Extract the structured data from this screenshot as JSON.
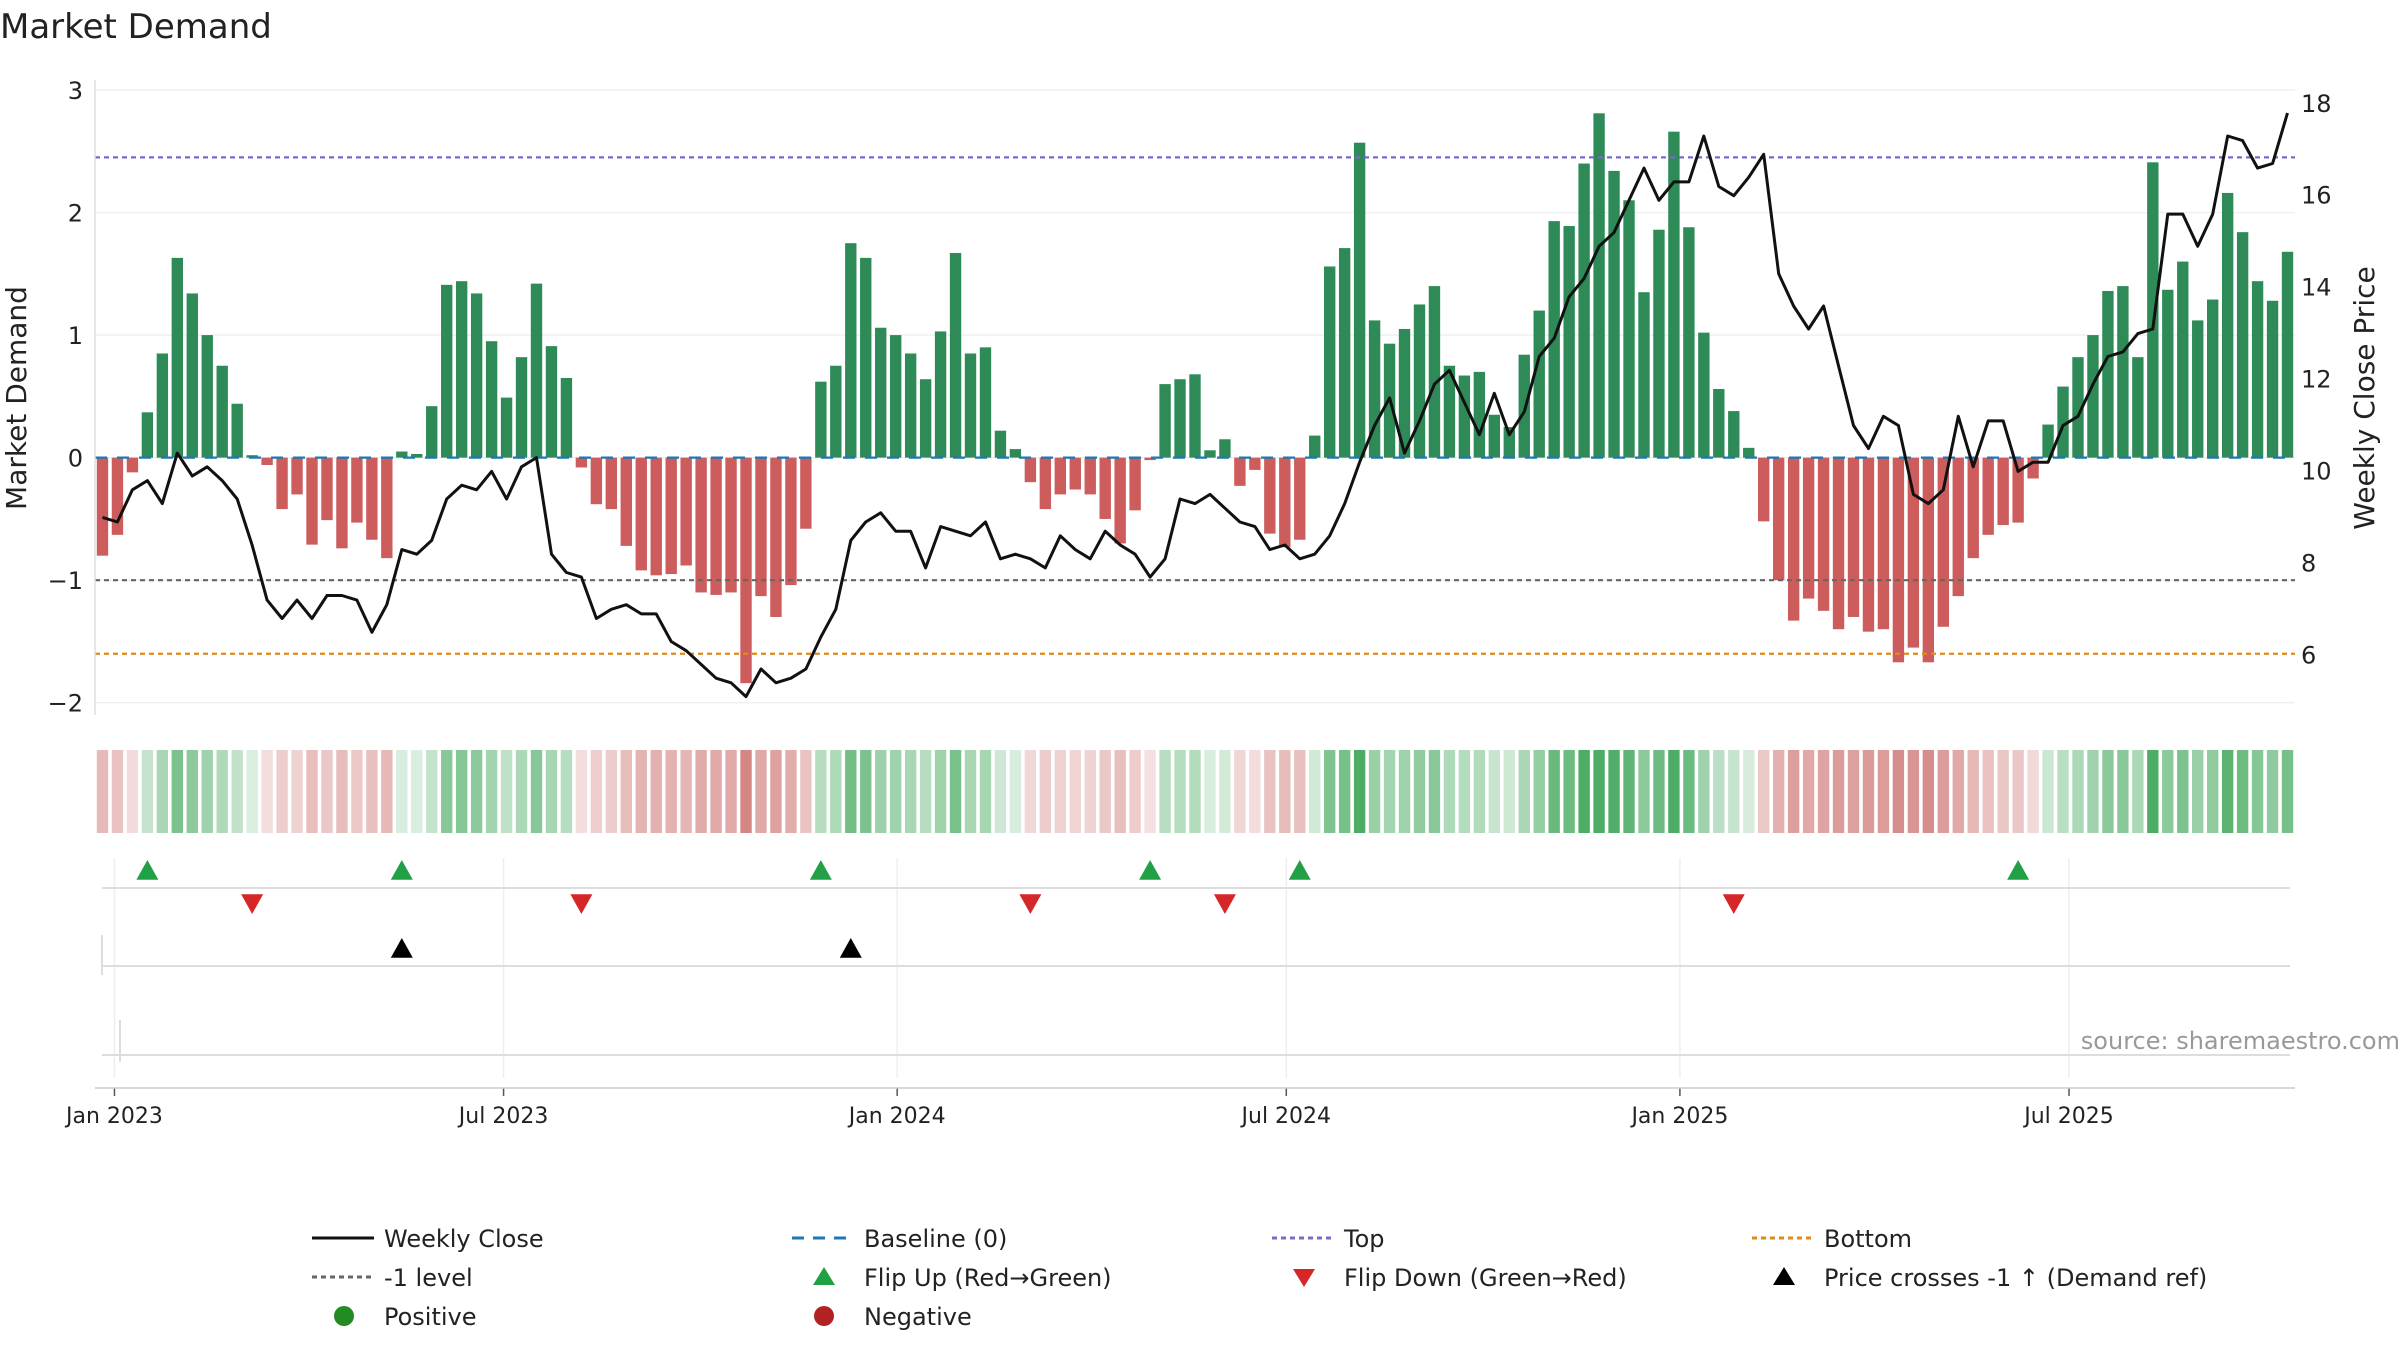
{
  "chart_data": {
    "type": "bar",
    "title": "Market Demand",
    "ylabel": "Market Demand",
    "y2label": "Weekly Close Price",
    "ylim": [
      -2.1,
      3.0
    ],
    "y2lim": [
      4.7,
      18.3
    ],
    "yticks": [
      "3",
      "2",
      "1",
      "0",
      "−1",
      "−2"
    ],
    "y2ticks": [
      "18",
      "16",
      "14",
      "12",
      "10",
      "8",
      "6"
    ],
    "xticks": [
      "Jan 2023",
      "Jul 2023",
      "Jan 2024",
      "Jul 2024",
      "Jan 2025",
      "Jul 2025"
    ],
    "xtick_weeks": [
      1.3,
      27.3,
      53.6,
      79.6,
      105.9,
      131.9
    ],
    "reference_lines": {
      "top": 2.45,
      "minus_one": -1.0,
      "bottom": -1.6,
      "baseline": 0
    },
    "demand": [
      -0.8,
      -0.63,
      -0.12,
      0.37,
      0.85,
      1.63,
      1.34,
      1.0,
      0.75,
      0.44,
      0.02,
      -0.06,
      -0.42,
      -0.3,
      -0.71,
      -0.51,
      -0.74,
      -0.53,
      -0.67,
      -0.82,
      0.05,
      0.03,
      0.42,
      1.41,
      1.44,
      1.34,
      0.95,
      0.49,
      0.82,
      1.42,
      0.91,
      0.65,
      -0.08,
      -0.38,
      -0.42,
      -0.72,
      -0.92,
      -0.96,
      -0.95,
      -0.88,
      -1.1,
      -1.12,
      -1.1,
      -1.84,
      -1.13,
      -1.3,
      -1.04,
      -0.58,
      0.62,
      0.75,
      1.75,
      1.63,
      1.06,
      1.0,
      0.85,
      0.64,
      1.03,
      1.67,
      0.85,
      0.9,
      0.22,
      0.07,
      -0.2,
      -0.42,
      -0.3,
      -0.26,
      -0.3,
      -0.5,
      -0.7,
      -0.43,
      -0.02,
      0.6,
      0.64,
      0.68,
      0.06,
      0.15,
      -0.23,
      -0.1,
      -0.62,
      -0.73,
      -0.67,
      0.18,
      1.56,
      1.71,
      2.57,
      1.12,
      0.93,
      1.05,
      1.25,
      1.4,
      0.75,
      0.67,
      0.7,
      0.35,
      0.25,
      0.84,
      1.2,
      1.93,
      1.89,
      2.4,
      2.81,
      2.34,
      2.1,
      1.35,
      1.86,
      2.66,
      1.88,
      1.02,
      0.56,
      0.38,
      0.08,
      -0.52,
      -1.0,
      -1.33,
      -1.15,
      -1.25,
      -1.4,
      -1.3,
      -1.42,
      -1.4,
      -1.67,
      -1.55,
      -1.67,
      -1.38,
      -1.13,
      -0.82,
      -0.63,
      -0.55,
      -0.53,
      -0.17,
      0.27,
      0.58,
      0.82,
      1.0,
      1.36,
      1.4,
      0.82,
      2.41,
      1.37,
      1.6,
      1.12,
      1.29,
      2.16,
      1.84,
      1.44,
      1.28,
      1.68
    ],
    "weekly_close": [
      9.0,
      8.9,
      9.6,
      9.8,
      9.3,
      10.4,
      9.9,
      10.1,
      9.8,
      9.4,
      8.4,
      7.2,
      6.8,
      7.2,
      6.8,
      7.3,
      7.3,
      7.2,
      6.5,
      7.1,
      8.3,
      8.2,
      8.5,
      9.4,
      9.7,
      9.6,
      10.0,
      9.4,
      10.1,
      10.3,
      8.2,
      7.8,
      7.7,
      6.8,
      7.0,
      7.1,
      6.9,
      6.9,
      6.3,
      6.1,
      5.8,
      5.5,
      5.4,
      5.1,
      5.7,
      5.4,
      5.5,
      5.7,
      6.4,
      7.0,
      8.5,
      8.9,
      9.1,
      8.7,
      8.7,
      7.9,
      8.8,
      8.7,
      8.6,
      8.9,
      8.1,
      8.2,
      8.1,
      7.9,
      8.6,
      8.3,
      8.1,
      8.7,
      8.4,
      8.2,
      7.7,
      8.1,
      9.4,
      9.3,
      9.5,
      9.2,
      8.9,
      8.8,
      8.3,
      8.4,
      8.1,
      8.2,
      8.6,
      9.3,
      10.2,
      11.0,
      11.6,
      10.4,
      11.1,
      11.9,
      12.2,
      11.5,
      10.8,
      11.7,
      10.8,
      11.3,
      12.5,
      12.9,
      13.8,
      14.2,
      14.9,
      15.2,
      15.9,
      16.6,
      15.9,
      16.3,
      16.3,
      17.3,
      16.2,
      16.0,
      16.4,
      16.9,
      14.3,
      13.6,
      13.1,
      13.6,
      12.3,
      11.0,
      10.5,
      11.2,
      11.0,
      9.5,
      9.3,
      9.6,
      11.2,
      10.1,
      11.1,
      11.1,
      10.0,
      10.2,
      10.2,
      11.0,
      11.2,
      11.9,
      12.5,
      12.6,
      13.0,
      13.1,
      15.6,
      15.6,
      14.9,
      15.6,
      17.3,
      17.2,
      16.6,
      16.7,
      17.8
    ],
    "marker_rows": {
      "flip_up_weeks": [
        3,
        20,
        48,
        70,
        80,
        128
      ],
      "flip_down_weeks": [
        10,
        32,
        62,
        75,
        109
      ],
      "price_cross_weeks": [
        20,
        50
      ]
    },
    "legend": [
      "Weekly Close",
      "Baseline (0)",
      "Top",
      "Bottom",
      "-1 level",
      "Flip Up (Red→Green)",
      "Flip Down (Green→Red)",
      "Price crosses -1 ↑ (Demand ref)",
      "Positive",
      "Negative"
    ],
    "annotation": "source: sharemaestro.com",
    "colors": {
      "positive": "#2e8b57",
      "negative": "#cd5c5c",
      "line": "#111111",
      "baseline": "#1f77b4",
      "top": "#7b68c7",
      "minus_one": "#666666",
      "bottom": "#e08a1e",
      "flip_up": "#22a045",
      "flip_down": "#d62728",
      "cross": "#000000",
      "positive_dot": "#228b22",
      "negative_dot": "#b22222"
    }
  }
}
